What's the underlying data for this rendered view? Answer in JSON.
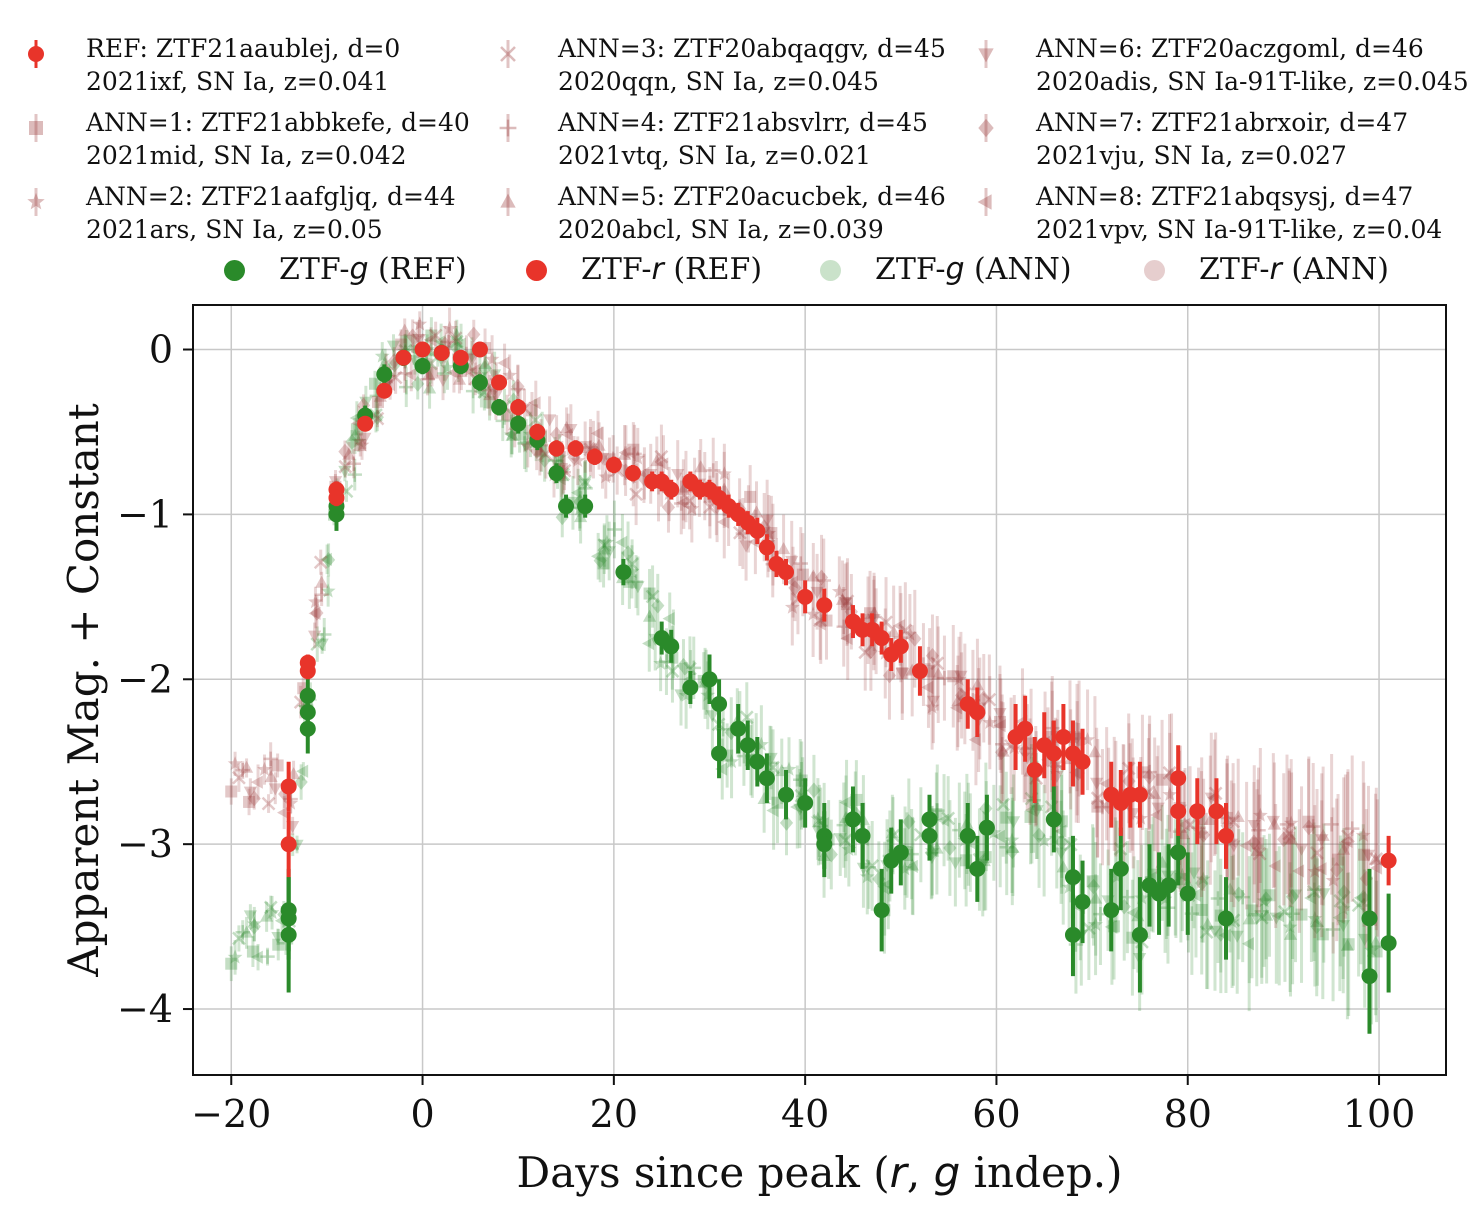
{
  "legend": {
    "references": [
      {
        "line1": "REF: ZTF21aaublej, d=0",
        "line2": "2021ixf, SN Ia, z=0.041",
        "marker": "circle-errorbar-icon"
      },
      {
        "line1": "ANN=1: ZTF21abbkefe, d=40",
        "line2": "2021mid, SN Ia, z=0.042",
        "marker": "square-icon"
      },
      {
        "line1": "ANN=2: ZTF21aafgljq, d=44",
        "line2": "2021ars, SN Ia, z=0.05",
        "marker": "star-icon"
      },
      {
        "line1": "ANN=3: ZTF20abqaqgv, d=45",
        "line2": "2020qqn, SN Ia, z=0.045",
        "marker": "x-icon"
      },
      {
        "line1": "ANN=4: ZTF21absvlrr, d=45",
        "line2": "2021vtq, SN Ia, z=0.021",
        "marker": "plus-icon"
      },
      {
        "line1": "ANN=5: ZTF20acucbek, d=46",
        "line2": "2020abcl, SN Ia, z=0.039",
        "marker": "triangle-up-icon"
      },
      {
        "line1": "ANN=6: ZTF20aczgoml, d=46",
        "line2": "2020adis, SN Ia-91T-like, z=0.045",
        "marker": "triangle-down-icon"
      },
      {
        "line1": "ANN=7: ZTF21abrxoir, d=47",
        "line2": "2021vju, SN Ia, z=0.027",
        "marker": "diamond-icon"
      },
      {
        "line1": "ANN=8: ZTF21abqsysj, d=47",
        "line2": "2021vpv, SN Ia-91T-like, z=0.04",
        "marker": "triangle-left-icon"
      }
    ],
    "bands": [
      {
        "band": "g",
        "pre": "ZTF-",
        "suf": " (REF)",
        "color": "#2a8a2a",
        "alpha": 1.0
      },
      {
        "band": "r",
        "pre": "ZTF-",
        "suf": " (REF)",
        "color": "#e8342a",
        "alpha": 1.0
      },
      {
        "band": "g",
        "pre": "ZTF-",
        "suf": " (ANN)",
        "color": "#2a8a2a",
        "alpha": 0.25
      },
      {
        "band": "r",
        "pre": "ZTF-",
        "suf": " (ANN)",
        "color": "#9c3b3b",
        "alpha": 0.25
      }
    ]
  },
  "chart_data": {
    "type": "scatter",
    "title": "",
    "ylabel": "Apparent Mag. + Constant",
    "xlabel_pre": "Days since peak (",
    "xlabel_r": "r",
    "xlabel_mid": ", ",
    "xlabel_g": "g",
    "xlabel_suf": " indep.)",
    "xlim": [
      -24,
      107
    ],
    "ylim": [
      -4.4,
      0.27
    ],
    "y_inverted_display": true,
    "grid": true,
    "xticks": [
      -20,
      0,
      20,
      40,
      60,
      80,
      100
    ],
    "xtick_labels": [
      "−20",
      "0",
      "20",
      "40",
      "60",
      "80",
      "100"
    ],
    "yticks": [
      0,
      -1,
      -2,
      -3,
      -4
    ],
    "ytick_labels": [
      "0",
      "−1",
      "−2",
      "−3",
      "−4"
    ],
    "colors": {
      "ref_g": "#2a8a2a",
      "ref_r": "#e8342a",
      "ann_g": "#2a8a2a",
      "ann_r": "#9c3b3b"
    },
    "ref_g": {
      "x": [
        -14,
        -14,
        -14,
        -12,
        -12,
        -12,
        -9,
        -9,
        -6,
        -4,
        -2,
        0,
        2,
        4,
        6,
        8,
        10,
        12,
        14,
        15,
        17,
        21,
        25,
        26,
        28,
        30,
        31,
        31,
        33,
        34,
        35,
        36,
        38,
        40,
        42,
        42,
        45,
        46,
        48,
        49,
        50,
        53,
        53,
        57,
        58,
        59,
        66,
        68,
        68,
        69,
        72,
        73,
        75,
        76,
        77,
        78,
        79,
        80,
        84,
        99,
        99,
        101
      ],
      "y": [
        -3.55,
        -3.4,
        -3.45,
        -2.1,
        -2.2,
        -2.3,
        -1.0,
        -0.95,
        -0.4,
        -0.15,
        -0.05,
        -0.1,
        -0.02,
        -0.1,
        -0.2,
        -0.35,
        -0.45,
        -0.55,
        -0.75,
        -0.95,
        -0.95,
        -1.35,
        -1.75,
        -1.8,
        -2.05,
        -2.0,
        -2.15,
        -2.45,
        -2.3,
        -2.4,
        -2.5,
        -2.6,
        -2.7,
        -2.75,
        -2.95,
        -3.0,
        -2.85,
        -2.95,
        -3.4,
        -3.1,
        -3.05,
        -2.85,
        -2.95,
        -2.95,
        -3.15,
        -2.9,
        -2.85,
        -3.2,
        -3.55,
        -3.35,
        -3.4,
        -3.15,
        -3.55,
        -3.25,
        -3.3,
        -3.25,
        -3.05,
        -3.3,
        -3.45,
        -3.45,
        -3.8,
        -3.6
      ],
      "err": [
        0.35,
        0.25,
        0.25,
        0.15,
        0.15,
        0.15,
        0.1,
        0.08,
        0.06,
        0.06,
        0.05,
        0.05,
        0.05,
        0.05,
        0.05,
        0.05,
        0.06,
        0.06,
        0.06,
        0.07,
        0.07,
        0.08,
        0.1,
        0.1,
        0.1,
        0.15,
        0.15,
        0.15,
        0.15,
        0.15,
        0.15,
        0.15,
        0.15,
        0.15,
        0.2,
        0.2,
        0.2,
        0.2,
        0.25,
        0.2,
        0.2,
        0.15,
        0.15,
        0.2,
        0.2,
        0.2,
        0.2,
        0.25,
        0.25,
        0.25,
        0.25,
        0.25,
        0.35,
        0.25,
        0.25,
        0.25,
        0.2,
        0.25,
        0.25,
        0.3,
        0.35,
        0.3
      ]
    },
    "ref_r": {
      "x": [
        -14,
        -14,
        -12,
        -12,
        -9,
        -9,
        -6,
        -4,
        -2,
        0,
        2,
        4,
        6,
        8,
        10,
        12,
        14,
        16,
        18,
        20,
        22,
        24,
        25,
        26,
        28,
        29,
        30,
        31,
        32,
        33,
        34,
        35,
        36,
        37,
        38,
        40,
        42,
        45,
        46,
        47,
        48,
        49,
        50,
        52,
        57,
        58,
        62,
        63,
        64,
        65,
        66,
        67,
        68,
        69,
        72,
        73,
        74,
        75,
        79,
        79,
        81,
        83,
        84,
        101
      ],
      "y": [
        -2.65,
        -3.0,
        -1.9,
        -1.95,
        -0.85,
        -0.9,
        -0.45,
        -0.25,
        -0.05,
        0.0,
        -0.02,
        -0.05,
        0.0,
        -0.2,
        -0.35,
        -0.5,
        -0.6,
        -0.6,
        -0.65,
        -0.7,
        -0.75,
        -0.8,
        -0.8,
        -0.85,
        -0.8,
        -0.85,
        -0.85,
        -0.9,
        -0.95,
        -1.0,
        -1.05,
        -1.1,
        -1.2,
        -1.3,
        -1.35,
        -1.5,
        -1.55,
        -1.65,
        -1.7,
        -1.7,
        -1.75,
        -1.85,
        -1.8,
        -1.95,
        -2.15,
        -2.2,
        -2.35,
        -2.3,
        -2.55,
        -2.4,
        -2.45,
        -2.35,
        -2.45,
        -2.5,
        -2.7,
        -2.75,
        -2.7,
        -2.7,
        -2.6,
        -2.8,
        -2.8,
        -2.8,
        -2.95,
        -3.1
      ],
      "err": [
        0.15,
        0.2,
        0.05,
        0.05,
        0.05,
        0.05,
        0.04,
        0.04,
        0.04,
        0.04,
        0.04,
        0.04,
        0.04,
        0.04,
        0.05,
        0.05,
        0.05,
        0.05,
        0.05,
        0.05,
        0.05,
        0.06,
        0.06,
        0.06,
        0.06,
        0.06,
        0.06,
        0.07,
        0.07,
        0.07,
        0.07,
        0.08,
        0.08,
        0.08,
        0.08,
        0.1,
        0.1,
        0.1,
        0.1,
        0.1,
        0.1,
        0.1,
        0.1,
        0.15,
        0.15,
        0.15,
        0.2,
        0.2,
        0.2,
        0.2,
        0.2,
        0.2,
        0.2,
        0.2,
        0.2,
        0.2,
        0.2,
        0.2,
        0.2,
        0.15,
        0.2,
        0.2,
        0.2,
        0.15
      ]
    },
    "ann_g_markers": [
      "s",
      "*",
      "x",
      "+",
      "^",
      "v",
      "D",
      "<"
    ],
    "ann_r_markers": [
      "s",
      "*",
      "x",
      "+",
      "^",
      "v",
      "D",
      "<"
    ]
  }
}
